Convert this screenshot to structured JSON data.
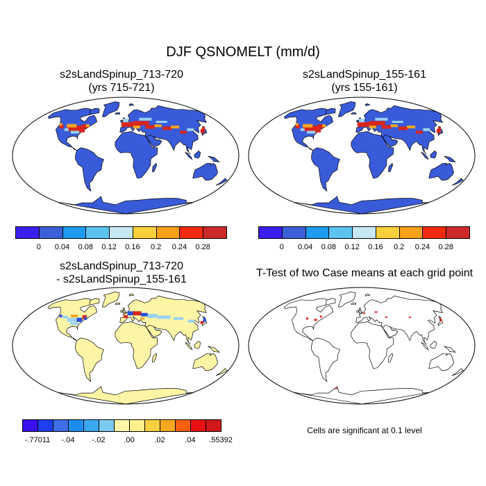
{
  "title": "DJF QSNOMELT (mm/d)",
  "panels": [
    {
      "line1": "s2sLandSpinup_713-720",
      "line2": "(yrs 715-721)"
    },
    {
      "line1": "s2sLandSpinup_155-161",
      "line2": "(yrs 155-161)"
    },
    {
      "line1": "s2sLandSpinup_713-720",
      "line2": "- s2sLandSpinup_155-161"
    },
    {
      "line1": "T-Test of two Case means at each grid point",
      "line2": ""
    }
  ],
  "note": "Cells are significant at 0.1 level",
  "colorbar_main": {
    "colors": [
      "#3b1ef0",
      "#3b5fd6",
      "#1d9bf0",
      "#5cc2f0",
      "#c6e8f4",
      "#f7d03c",
      "#f7a21a",
      "#f02a0c",
      "#cc2a2a"
    ],
    "labels": [
      "0",
      "0.04",
      "0.08",
      "0.12",
      "0.16",
      "0.2",
      "0.24",
      "0.28"
    ]
  },
  "colorbar_diff": {
    "colors": [
      "#3b10f0",
      "#1e3ff0",
      "#3e6ee8",
      "#1c8ef0",
      "#38a8f0",
      "#7ccaf0",
      "#fff6a8",
      "#fff08c",
      "#f8d040",
      "#f8a820",
      "#f86010",
      "#e81010",
      "#d01818"
    ],
    "labels": [
      "-.77011",
      "-.04",
      "-.02",
      ".00",
      ".02",
      ".04",
      ".55392"
    ],
    "label_slots": [
      0,
      2,
      4,
      6,
      8,
      10,
      12
    ]
  },
  "map_colors": {
    "ocean": "#ffffff",
    "land_main": "#3a5bd9",
    "land_diff": "#fdf5a6",
    "melt_hot": "#d8261c",
    "melt_warm": "#f6a623",
    "melt_light": "#9ad2f0",
    "diff_neg": "#2b4ee0",
    "diff_pos": "#d8261c",
    "ttest_sig": "#d8261c"
  }
}
